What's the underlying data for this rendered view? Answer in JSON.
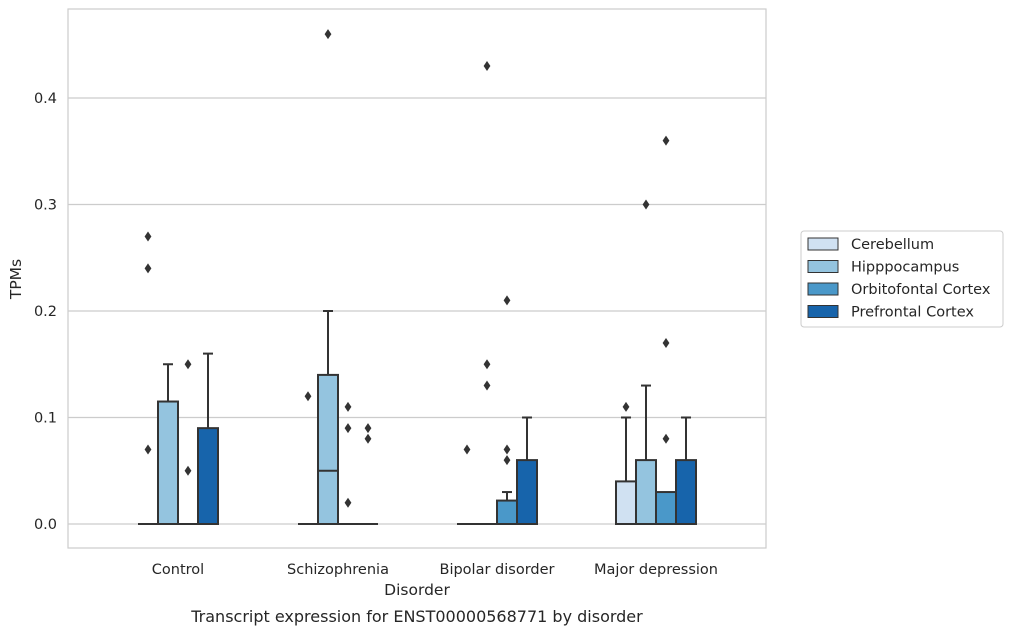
{
  "caption": "Transcript expression for ENST00000568771 by disorder",
  "chart_data": {
    "type": "box",
    "xlabel": "Disorder",
    "ylabel": "TPMs",
    "ylim": [
      -0.022,
      0.485
    ],
    "yticks": [
      0.0,
      0.1,
      0.2,
      0.3,
      0.4
    ],
    "ytick_labels": [
      "0.0",
      "0.1",
      "0.2",
      "0.3",
      "0.4"
    ],
    "grid": "horizontal",
    "legend_position": "right",
    "categories": [
      "Control",
      "Schizophrenia",
      "Bipolar disorder",
      "Major depression"
    ],
    "series": [
      {
        "name": "Cerebellum",
        "color": "#d0e1f2",
        "boxes": [
          {
            "q1": 0,
            "median": 0,
            "q3": 0,
            "whisker_low": 0,
            "whisker_high": 0,
            "outliers": [
              0.07,
              0.24,
              0.27
            ]
          },
          {
            "q1": 0,
            "median": 0,
            "q3": 0,
            "whisker_low": 0,
            "whisker_high": 0,
            "outliers": [
              0.12
            ]
          },
          {
            "q1": 0,
            "median": 0,
            "q3": 0,
            "whisker_low": 0,
            "whisker_high": 0,
            "outliers": [
              0.07
            ]
          },
          {
            "q1": 0,
            "median": 0,
            "q3": 0.04,
            "whisker_low": 0,
            "whisker_high": 0.1,
            "outliers": [
              0.11
            ]
          }
        ]
      },
      {
        "name": "Hipppocampus",
        "color": "#94c4df",
        "boxes": [
          {
            "q1": 0,
            "median": 0,
            "q3": 0.115,
            "whisker_low": 0,
            "whisker_high": 0.15,
            "outliers": []
          },
          {
            "q1": 0,
            "median": 0.05,
            "q3": 0.14,
            "whisker_low": 0,
            "whisker_high": 0.2,
            "outliers": [
              0.46
            ]
          },
          {
            "q1": 0,
            "median": 0,
            "q3": 0,
            "whisker_low": 0,
            "whisker_high": 0,
            "outliers": [
              0.13,
              0.15,
              0.43
            ]
          },
          {
            "q1": 0,
            "median": 0,
            "q3": 0.06,
            "whisker_low": 0,
            "whisker_high": 0.13,
            "outliers": [
              0.3
            ]
          }
        ]
      },
      {
        "name": "Orbitofontal Cortex",
        "color": "#4a98c9",
        "boxes": [
          {
            "q1": 0,
            "median": 0,
            "q3": 0,
            "whisker_low": 0,
            "whisker_high": 0,
            "outliers": [
              0.05,
              0.15
            ]
          },
          {
            "q1": 0,
            "median": 0,
            "q3": 0,
            "whisker_low": 0,
            "whisker_high": 0,
            "outliers": [
              0.02,
              0.09,
              0.11
            ]
          },
          {
            "q1": 0,
            "median": 0,
            "q3": 0.022,
            "whisker_low": 0,
            "whisker_high": 0.03,
            "outliers": [
              0.06,
              0.07,
              0.21
            ]
          },
          {
            "q1": 0,
            "median": 0,
            "q3": 0.03,
            "whisker_low": 0,
            "whisker_high": 0.03,
            "outliers": [
              0.08,
              0.17,
              0.36
            ]
          }
        ]
      },
      {
        "name": "Prefrontal Cortex",
        "color": "#1764ab",
        "boxes": [
          {
            "q1": 0,
            "median": 0,
            "q3": 0.09,
            "whisker_low": 0,
            "whisker_high": 0.16,
            "outliers": []
          },
          {
            "q1": 0,
            "median": 0,
            "q3": 0,
            "whisker_low": 0,
            "whisker_high": 0,
            "outliers": [
              0.08,
              0.09
            ]
          },
          {
            "q1": 0,
            "median": 0,
            "q3": 0.06,
            "whisker_low": 0,
            "whisker_high": 0.1,
            "outliers": []
          },
          {
            "q1": 0,
            "median": 0,
            "q3": 0.06,
            "whisker_low": 0,
            "whisker_high": 0.1,
            "outliers": []
          }
        ]
      }
    ]
  }
}
